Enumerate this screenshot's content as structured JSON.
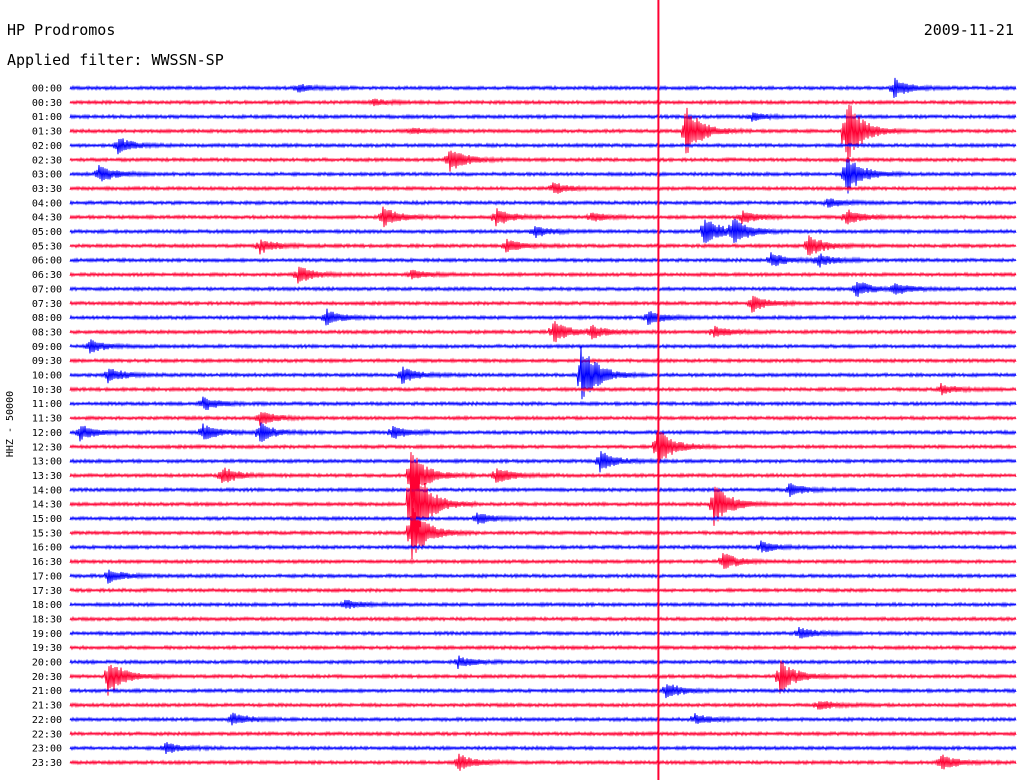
{
  "header": {
    "station": "HP Prodromos",
    "date": "2009-11-21",
    "filter": "Applied filter: WWSSN-SP"
  },
  "chart_data": {
    "type": "line",
    "title": "HP Prodromos",
    "subtitle": "Applied filter: WWSSN-SP",
    "date": "2009-11-21",
    "ylabel": "HHZ - 50000",
    "xlabel": "",
    "row_labels": [
      "00:00",
      "00:30",
      "01:00",
      "01:30",
      "02:00",
      "02:30",
      "03:00",
      "03:30",
      "04:00",
      "04:30",
      "05:00",
      "05:30",
      "06:00",
      "06:30",
      "07:00",
      "07:30",
      "08:00",
      "08:30",
      "09:00",
      "09:30",
      "10:00",
      "10:30",
      "11:00",
      "11:30",
      "12:00",
      "12:30",
      "13:00",
      "13:30",
      "14:00",
      "14:30",
      "15:00",
      "15:30",
      "16:00",
      "16:30",
      "17:00",
      "17:30",
      "18:00",
      "18:30",
      "19:00",
      "19:30",
      "20:00",
      "20:30",
      "21:00",
      "21:30",
      "22:00",
      "22:30",
      "23:00",
      "23:30"
    ],
    "colors": {
      "even_rows": "#0000ff",
      "odd_rows": "#ff0033",
      "event_marker": "#ff0033"
    },
    "event_marker_fraction": 0.622,
    "events": [
      {
        "row": "00:00",
        "pos": 0.24,
        "amp": 4
      },
      {
        "row": "00:00",
        "pos": 0.87,
        "amp": 10
      },
      {
        "row": "00:30",
        "pos": 0.32,
        "amp": 3
      },
      {
        "row": "01:00",
        "pos": 0.72,
        "amp": 4
      },
      {
        "row": "01:30",
        "pos": 0.36,
        "amp": 3
      },
      {
        "row": "01:30",
        "pos": 0.65,
        "amp": 30
      },
      {
        "row": "01:30",
        "pos": 0.82,
        "amp": 38
      },
      {
        "row": "02:00",
        "pos": 0.05,
        "amp": 9
      },
      {
        "row": "02:30",
        "pos": 0.4,
        "amp": 14
      },
      {
        "row": "03:00",
        "pos": 0.03,
        "amp": 9
      },
      {
        "row": "03:00",
        "pos": 0.82,
        "amp": 22
      },
      {
        "row": "03:30",
        "pos": 0.51,
        "amp": 6
      },
      {
        "row": "04:00",
        "pos": 0.8,
        "amp": 5
      },
      {
        "row": "04:30",
        "pos": 0.33,
        "amp": 11
      },
      {
        "row": "04:30",
        "pos": 0.45,
        "amp": 9
      },
      {
        "row": "04:30",
        "pos": 0.55,
        "amp": 5
      },
      {
        "row": "04:30",
        "pos": 0.71,
        "amp": 7
      },
      {
        "row": "04:30",
        "pos": 0.82,
        "amp": 8
      },
      {
        "row": "05:00",
        "pos": 0.49,
        "amp": 6
      },
      {
        "row": "05:00",
        "pos": 0.67,
        "amp": 16
      },
      {
        "row": "05:00",
        "pos": 0.7,
        "amp": 14
      },
      {
        "row": "05:30",
        "pos": 0.2,
        "amp": 8
      },
      {
        "row": "05:30",
        "pos": 0.46,
        "amp": 7
      },
      {
        "row": "05:30",
        "pos": 0.78,
        "amp": 12
      },
      {
        "row": "06:00",
        "pos": 0.74,
        "amp": 8
      },
      {
        "row": "06:00",
        "pos": 0.79,
        "amp": 7
      },
      {
        "row": "06:30",
        "pos": 0.24,
        "amp": 9
      },
      {
        "row": "06:30",
        "pos": 0.36,
        "amp": 5
      },
      {
        "row": "07:00",
        "pos": 0.83,
        "amp": 9
      },
      {
        "row": "07:00",
        "pos": 0.87,
        "amp": 7
      },
      {
        "row": "07:30",
        "pos": 0.72,
        "amp": 10
      },
      {
        "row": "08:00",
        "pos": 0.27,
        "amp": 9
      },
      {
        "row": "08:00",
        "pos": 0.61,
        "amp": 8
      },
      {
        "row": "08:30",
        "pos": 0.51,
        "amp": 12
      },
      {
        "row": "08:30",
        "pos": 0.55,
        "amp": 7
      },
      {
        "row": "08:30",
        "pos": 0.68,
        "amp": 6
      },
      {
        "row": "09:00",
        "pos": 0.02,
        "amp": 7
      },
      {
        "row": "10:00",
        "pos": 0.04,
        "amp": 8
      },
      {
        "row": "10:00",
        "pos": 0.35,
        "amp": 9
      },
      {
        "row": "10:00",
        "pos": 0.54,
        "amp": 34
      },
      {
        "row": "10:30",
        "pos": 0.92,
        "amp": 5
      },
      {
        "row": "11:00",
        "pos": 0.14,
        "amp": 7
      },
      {
        "row": "11:30",
        "pos": 0.2,
        "amp": 8
      },
      {
        "row": "12:00",
        "pos": 0.01,
        "amp": 8
      },
      {
        "row": "12:00",
        "pos": 0.14,
        "amp": 9
      },
      {
        "row": "12:00",
        "pos": 0.2,
        "amp": 10
      },
      {
        "row": "12:00",
        "pos": 0.34,
        "amp": 7
      },
      {
        "row": "12:30",
        "pos": 0.62,
        "amp": 22
      },
      {
        "row": "13:00",
        "pos": 0.56,
        "amp": 10
      },
      {
        "row": "13:30",
        "pos": 0.16,
        "amp": 9
      },
      {
        "row": "13:30",
        "pos": 0.36,
        "amp": 28
      },
      {
        "row": "13:30",
        "pos": 0.45,
        "amp": 9
      },
      {
        "row": "14:00",
        "pos": 0.76,
        "amp": 7
      },
      {
        "row": "14:30",
        "pos": 0.36,
        "amp": 60
      },
      {
        "row": "14:30",
        "pos": 0.68,
        "amp": 24
      },
      {
        "row": "15:00",
        "pos": 0.43,
        "amp": 6
      },
      {
        "row": "15:30",
        "pos": 0.36,
        "amp": 30
      },
      {
        "row": "16:00",
        "pos": 0.73,
        "amp": 6
      },
      {
        "row": "16:30",
        "pos": 0.69,
        "amp": 9
      },
      {
        "row": "17:00",
        "pos": 0.04,
        "amp": 7
      },
      {
        "row": "18:00",
        "pos": 0.29,
        "amp": 5
      },
      {
        "row": "19:00",
        "pos": 0.77,
        "amp": 7
      },
      {
        "row": "20:00",
        "pos": 0.41,
        "amp": 6
      },
      {
        "row": "20:30",
        "pos": 0.04,
        "amp": 20
      },
      {
        "row": "20:30",
        "pos": 0.75,
        "amp": 18
      },
      {
        "row": "21:00",
        "pos": 0.63,
        "amp": 8
      },
      {
        "row": "21:30",
        "pos": 0.79,
        "amp": 5
      },
      {
        "row": "22:00",
        "pos": 0.17,
        "amp": 7
      },
      {
        "row": "22:00",
        "pos": 0.66,
        "amp": 6
      },
      {
        "row": "23:00",
        "pos": 0.1,
        "amp": 6
      },
      {
        "row": "23:30",
        "pos": 0.41,
        "amp": 9
      },
      {
        "row": "23:30",
        "pos": 0.92,
        "amp": 9
      }
    ]
  }
}
